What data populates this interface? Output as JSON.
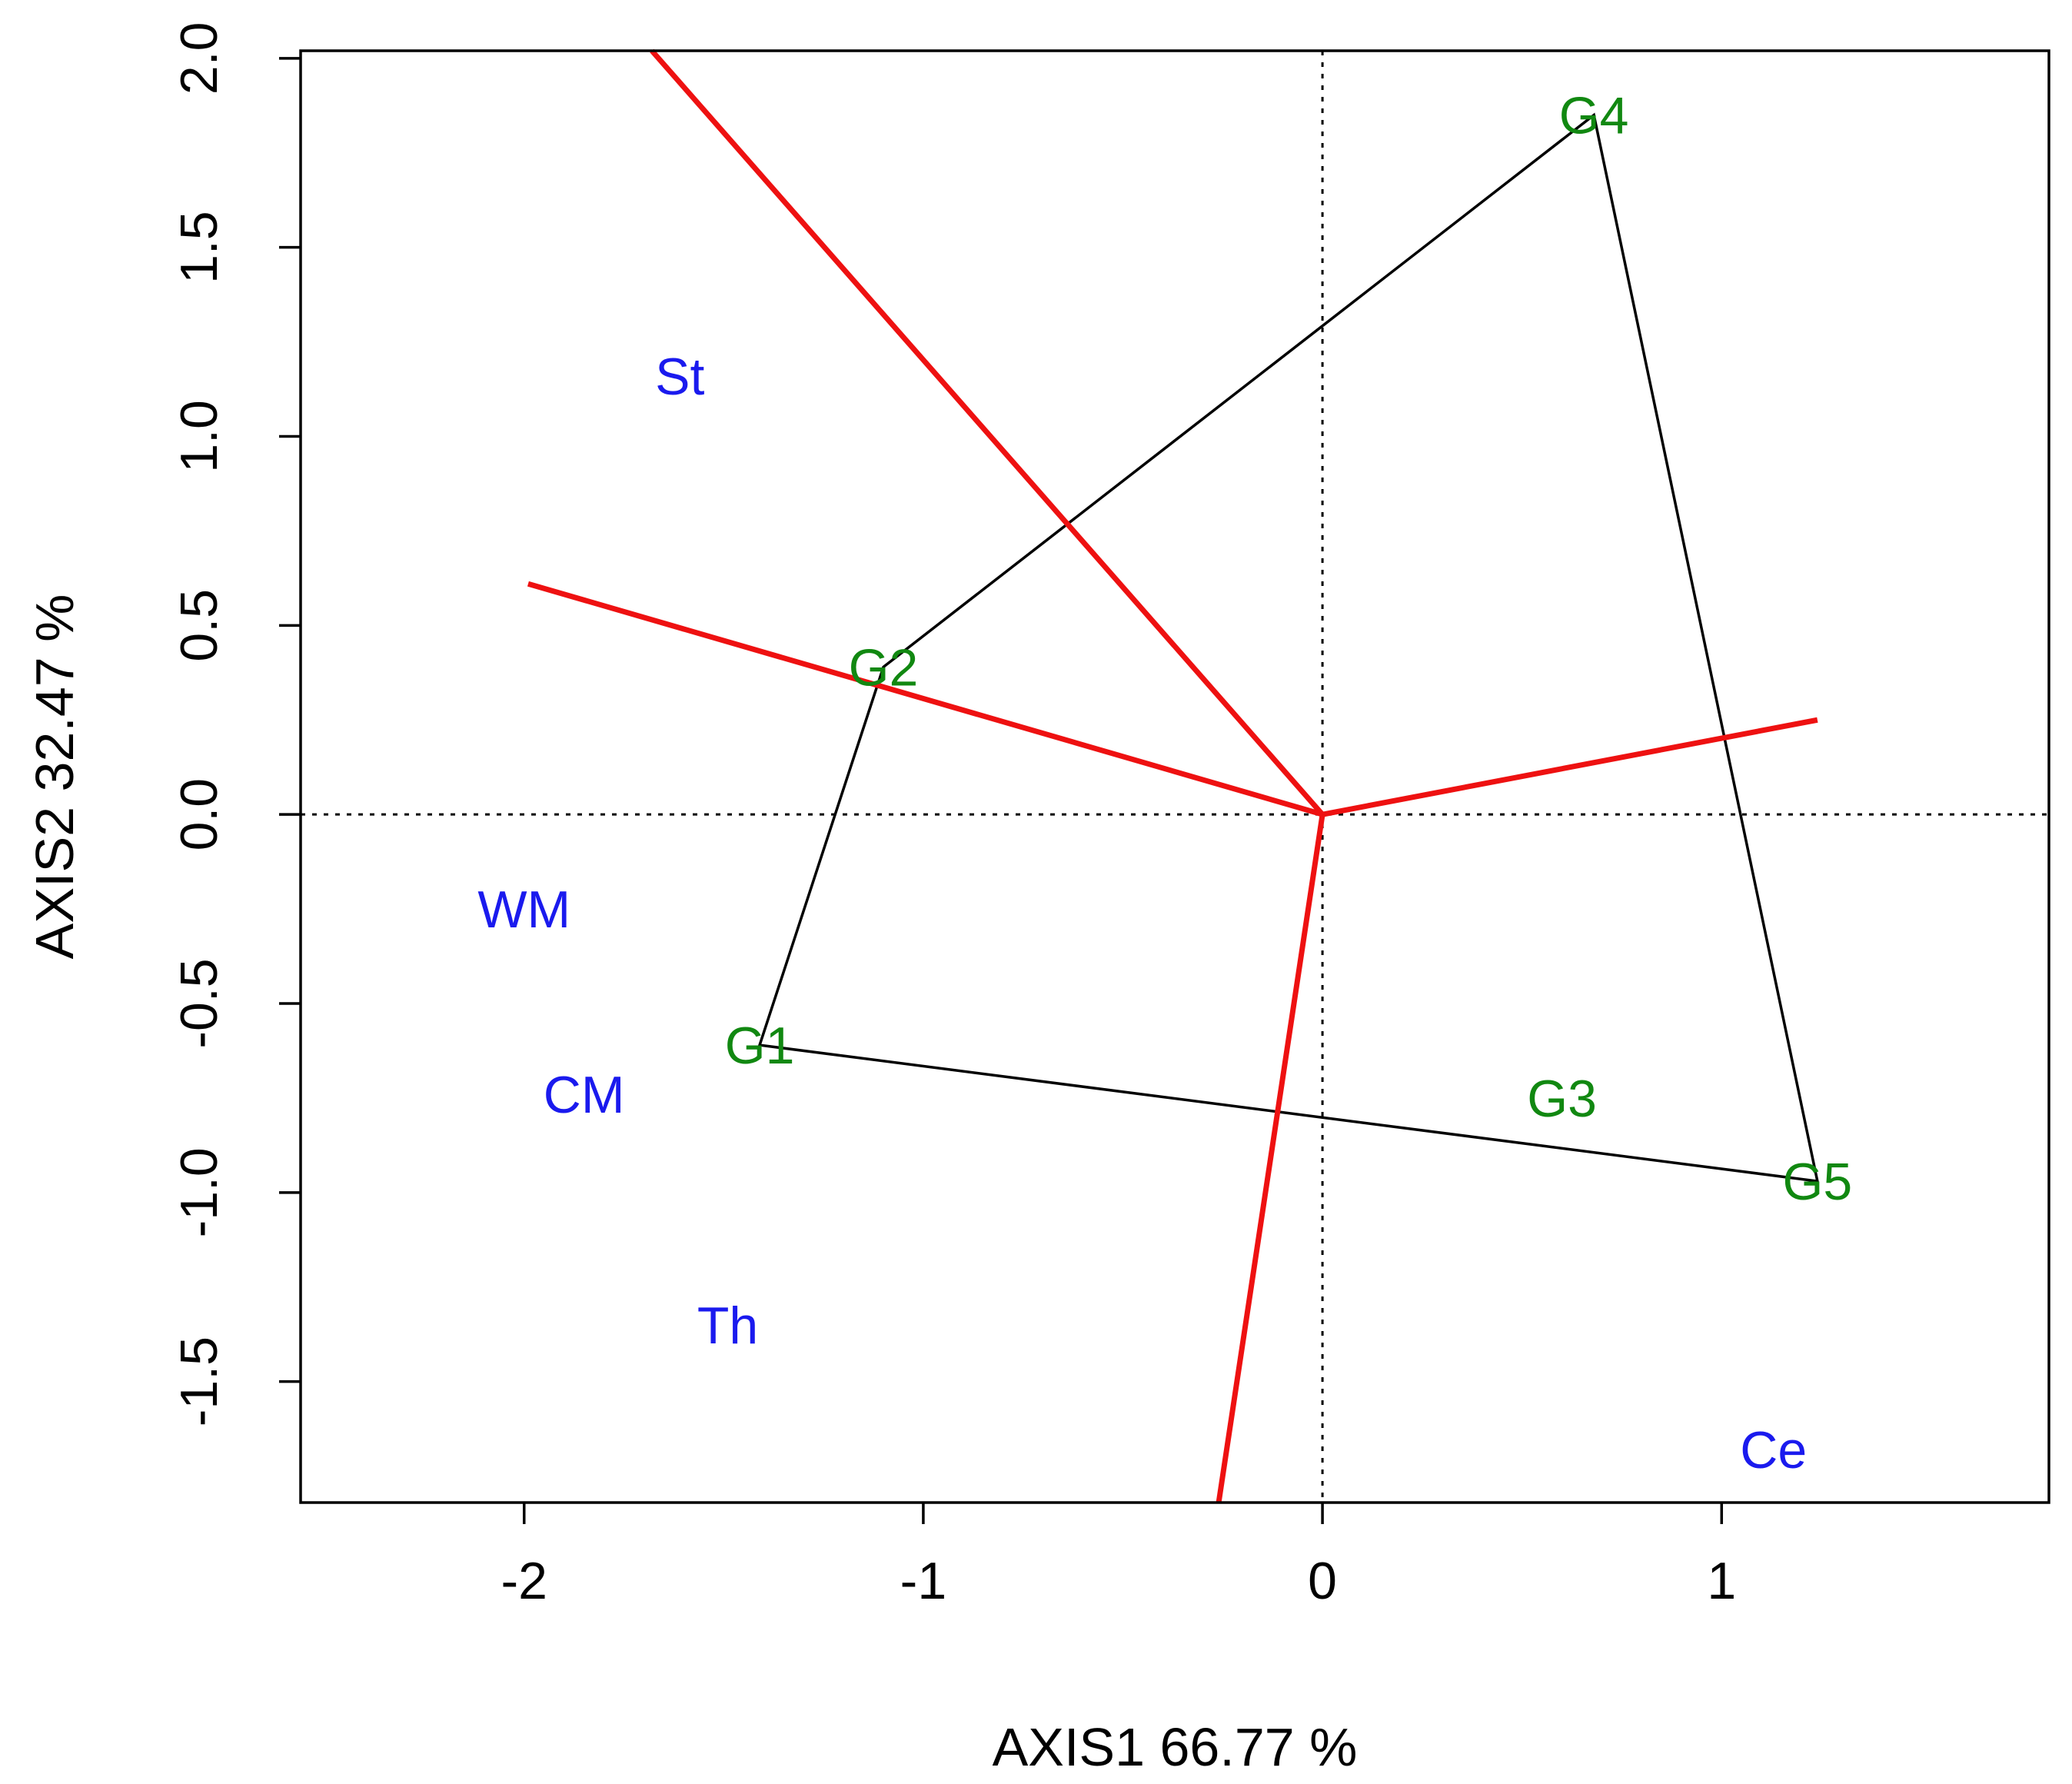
{
  "chart_data": {
    "type": "scatter",
    "subtype": "GGE biplot (which-won-where polygon)",
    "title": "",
    "xlabel": "AXIS1 66.77 %",
    "ylabel": "AXIS2 32.47 %",
    "xlim": [
      -2.56,
      1.82
    ],
    "ylim": [
      -1.82,
      2.02
    ],
    "x_ticks": [
      {
        "value": -2,
        "label": "-2"
      },
      {
        "value": -1,
        "label": "-1"
      },
      {
        "value": 0,
        "label": "0"
      },
      {
        "value": 1,
        "label": "1"
      }
    ],
    "y_ticks": [
      {
        "value": -1.5,
        "label": "-1.5"
      },
      {
        "value": -1.0,
        "label": "-1.0"
      },
      {
        "value": -0.5,
        "label": "-0.5"
      },
      {
        "value": 0.0,
        "label": "0.0"
      },
      {
        "value": 0.5,
        "label": "0.5"
      },
      {
        "value": 1.0,
        "label": "1.0"
      },
      {
        "value": 1.5,
        "label": "1.5"
      },
      {
        "value": 2.0,
        "label": "2.0"
      }
    ],
    "colors": {
      "genotype": "#118811",
      "environment": "#1a1aee",
      "ray": "#ee1111",
      "polygon": "#000000",
      "reference_lines": "#000000"
    },
    "genotypes": [
      {
        "name": "G1",
        "x": -1.41,
        "y": -0.61
      },
      {
        "name": "G2",
        "x": -1.1,
        "y": 0.39
      },
      {
        "name": "G3",
        "x": 0.6,
        "y": -0.75
      },
      {
        "name": "G4",
        "x": 0.68,
        "y": 1.85
      },
      {
        "name": "G5",
        "x": 1.24,
        "y": -0.97
      }
    ],
    "environments": [
      {
        "name": "St",
        "x": -1.61,
        "y": 1.16
      },
      {
        "name": "WM",
        "x": -2.0,
        "y": -0.25
      },
      {
        "name": "CM",
        "x": -1.85,
        "y": -0.74
      },
      {
        "name": "Th",
        "x": -1.49,
        "y": -1.35
      },
      {
        "name": "Ce",
        "x": 1.13,
        "y": -1.68
      }
    ],
    "polygon": [
      "G4",
      "G2",
      "G1",
      "G5"
    ],
    "rays_to": [
      {
        "x": -1.68,
        "y": 2.02
      },
      {
        "x": -1.99,
        "y": 0.61
      },
      {
        "x": 1.24,
        "y": 0.25
      },
      {
        "x": -0.26,
        "y": -1.82
      }
    ],
    "reference_lines": {
      "x": 0,
      "y": 0,
      "style": "dotted"
    }
  }
}
